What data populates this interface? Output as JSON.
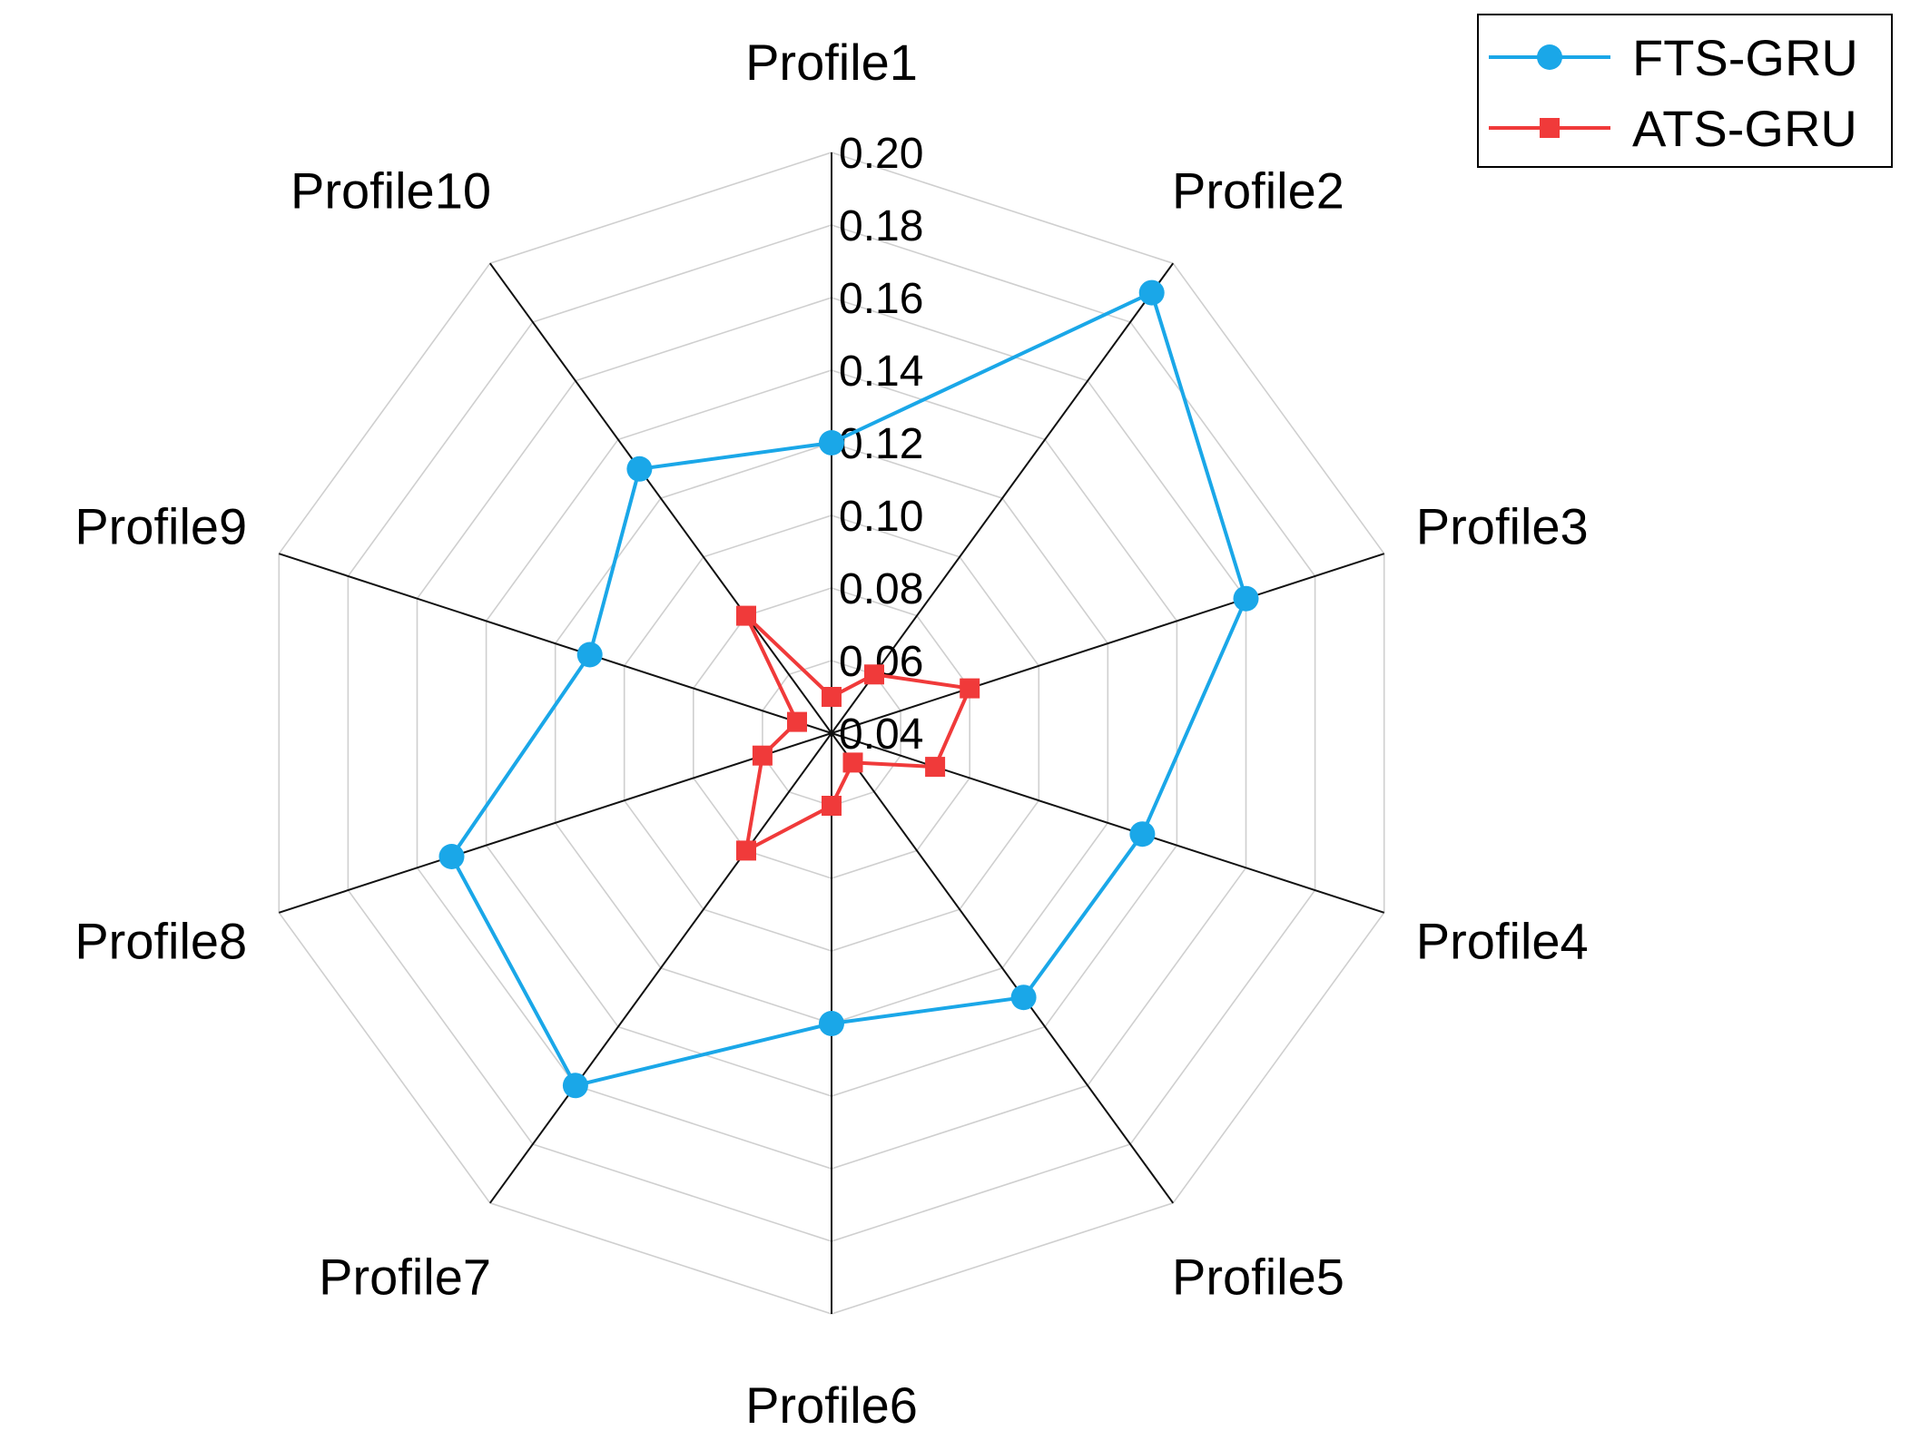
{
  "chart_data": {
    "type": "radar",
    "categories": [
      "Profile1",
      "Profile2",
      "Profile3",
      "Profile4",
      "Profile5",
      "Profile6",
      "Profile7",
      "Profile8",
      "Profile9",
      "Profile10"
    ],
    "r_axis": {
      "min": 0.04,
      "max": 0.2,
      "step": 0.02,
      "tick_labels": [
        "0.04",
        "0.06",
        "0.08",
        "0.10",
        "0.12",
        "0.14",
        "0.16",
        "0.18",
        "0.20"
      ]
    },
    "series": [
      {
        "name": "FTS-GRU",
        "color": "#1aa7e8",
        "marker": "circle",
        "values": [
          0.12,
          0.19,
          0.16,
          0.13,
          0.13,
          0.12,
          0.16,
          0.15,
          0.11,
          0.13
        ]
      },
      {
        "name": "ATS-GRU",
        "color": "#f03a3a",
        "marker": "square",
        "values": [
          0.05,
          0.06,
          0.08,
          0.07,
          0.05,
          0.06,
          0.08,
          0.06,
          0.05,
          0.08
        ]
      }
    ],
    "grid": true,
    "legend_position": "top-right"
  }
}
